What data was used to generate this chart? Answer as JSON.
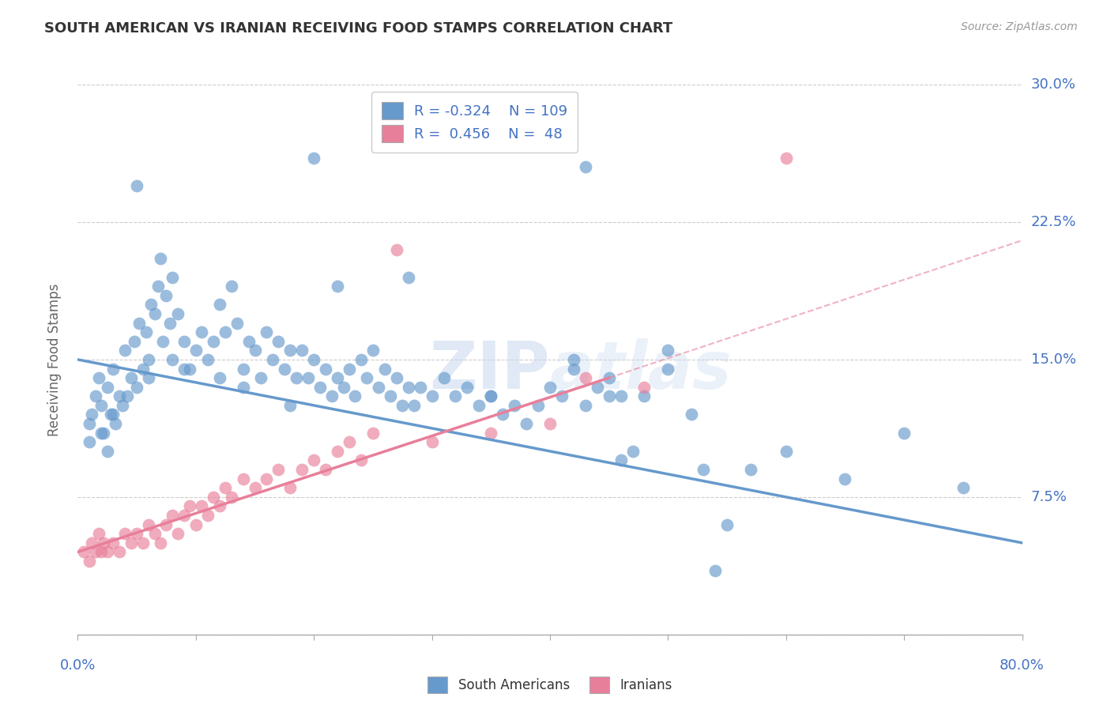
{
  "title": "SOUTH AMERICAN VS IRANIAN RECEIVING FOOD STAMPS CORRELATION CHART",
  "source": "Source: ZipAtlas.com",
  "ylabel": "Receiving Food Stamps",
  "xlim": [
    0.0,
    80.0
  ],
  "ylim": [
    0.0,
    30.0
  ],
  "yticks": [
    0.0,
    7.5,
    15.0,
    22.5,
    30.0
  ],
  "ytick_labels": [
    "",
    "7.5%",
    "15.0%",
    "22.5%",
    "30.0%"
  ],
  "xticks": [
    0,
    10,
    20,
    30,
    40,
    50,
    60,
    70,
    80
  ],
  "blue_color": "#6699cc",
  "pink_color": "#e87f9a",
  "trend_blue_x0": 0.0,
  "trend_blue_y0": 15.0,
  "trend_blue_x1": 80.0,
  "trend_blue_y1": 5.0,
  "trend_pink_solid_x0": 0.0,
  "trend_pink_solid_y0": 4.5,
  "trend_pink_solid_x1": 45.0,
  "trend_pink_solid_y1": 14.0,
  "trend_pink_dash_x0": 45.0,
  "trend_pink_dash_y0": 14.0,
  "trend_pink_dash_x1": 80.0,
  "trend_pink_dash_y1": 21.5,
  "watermark": "ZIPatlas",
  "blue_scatter": [
    [
      1.0,
      11.5
    ],
    [
      1.2,
      12.0
    ],
    [
      1.5,
      13.0
    ],
    [
      1.8,
      14.0
    ],
    [
      2.0,
      12.5
    ],
    [
      2.2,
      11.0
    ],
    [
      2.5,
      13.5
    ],
    [
      2.8,
      12.0
    ],
    [
      3.0,
      14.5
    ],
    [
      3.2,
      11.5
    ],
    [
      3.5,
      13.0
    ],
    [
      3.8,
      12.5
    ],
    [
      4.0,
      15.5
    ],
    [
      4.2,
      13.0
    ],
    [
      4.5,
      14.0
    ],
    [
      4.8,
      16.0
    ],
    [
      5.0,
      13.5
    ],
    [
      5.2,
      17.0
    ],
    [
      5.5,
      14.5
    ],
    [
      5.8,
      16.5
    ],
    [
      6.0,
      15.0
    ],
    [
      6.2,
      18.0
    ],
    [
      6.5,
      17.5
    ],
    [
      6.8,
      19.0
    ],
    [
      7.0,
      20.5
    ],
    [
      7.2,
      16.0
    ],
    [
      7.5,
      18.5
    ],
    [
      7.8,
      17.0
    ],
    [
      8.0,
      19.5
    ],
    [
      8.5,
      17.5
    ],
    [
      9.0,
      16.0
    ],
    [
      9.5,
      14.5
    ],
    [
      10.0,
      15.5
    ],
    [
      10.5,
      16.5
    ],
    [
      11.0,
      15.0
    ],
    [
      11.5,
      16.0
    ],
    [
      12.0,
      18.0
    ],
    [
      12.5,
      16.5
    ],
    [
      13.0,
      19.0
    ],
    [
      13.5,
      17.0
    ],
    [
      14.0,
      14.5
    ],
    [
      14.5,
      16.0
    ],
    [
      15.0,
      15.5
    ],
    [
      15.5,
      14.0
    ],
    [
      16.0,
      16.5
    ],
    [
      16.5,
      15.0
    ],
    [
      17.0,
      16.0
    ],
    [
      17.5,
      14.5
    ],
    [
      18.0,
      15.5
    ],
    [
      18.5,
      14.0
    ],
    [
      19.0,
      15.5
    ],
    [
      19.5,
      14.0
    ],
    [
      20.0,
      15.0
    ],
    [
      20.5,
      13.5
    ],
    [
      21.0,
      14.5
    ],
    [
      21.5,
      13.0
    ],
    [
      22.0,
      14.0
    ],
    [
      22.5,
      13.5
    ],
    [
      23.0,
      14.5
    ],
    [
      23.5,
      13.0
    ],
    [
      24.0,
      15.0
    ],
    [
      24.5,
      14.0
    ],
    [
      25.0,
      15.5
    ],
    [
      25.5,
      13.5
    ],
    [
      26.0,
      14.5
    ],
    [
      26.5,
      13.0
    ],
    [
      27.0,
      14.0
    ],
    [
      27.5,
      12.5
    ],
    [
      28.0,
      13.5
    ],
    [
      28.5,
      12.5
    ],
    [
      29.0,
      13.5
    ],
    [
      30.0,
      13.0
    ],
    [
      31.0,
      14.0
    ],
    [
      32.0,
      13.0
    ],
    [
      33.0,
      13.5
    ],
    [
      34.0,
      12.5
    ],
    [
      35.0,
      13.0
    ],
    [
      36.0,
      12.0
    ],
    [
      37.0,
      12.5
    ],
    [
      38.0,
      11.5
    ],
    [
      39.0,
      12.5
    ],
    [
      40.0,
      13.5
    ],
    [
      41.0,
      13.0
    ],
    [
      42.0,
      14.5
    ],
    [
      43.0,
      12.5
    ],
    [
      44.0,
      13.5
    ],
    [
      45.0,
      13.0
    ],
    [
      46.0,
      9.5
    ],
    [
      47.0,
      10.0
    ],
    [
      48.0,
      13.0
    ],
    [
      50.0,
      15.5
    ],
    [
      52.0,
      12.0
    ],
    [
      53.0,
      9.0
    ],
    [
      54.0,
      3.5
    ],
    [
      55.0,
      6.0
    ],
    [
      57.0,
      9.0
    ],
    [
      60.0,
      10.0
    ],
    [
      65.0,
      8.5
    ],
    [
      70.0,
      11.0
    ],
    [
      75.0,
      8.0
    ],
    [
      5.0,
      24.5
    ],
    [
      20.0,
      26.0
    ],
    [
      43.0,
      25.5
    ],
    [
      28.0,
      19.5
    ],
    [
      8.0,
      15.0
    ],
    [
      3.0,
      12.0
    ],
    [
      12.0,
      14.0
    ],
    [
      22.0,
      19.0
    ],
    [
      35.0,
      13.0
    ],
    [
      45.0,
      14.0
    ],
    [
      1.0,
      10.5
    ],
    [
      2.0,
      11.0
    ],
    [
      2.5,
      10.0
    ],
    [
      6.0,
      14.0
    ],
    [
      9.0,
      14.5
    ],
    [
      14.0,
      13.5
    ],
    [
      18.0,
      12.5
    ],
    [
      46.0,
      13.0
    ],
    [
      50.0,
      14.5
    ],
    [
      42.0,
      15.0
    ]
  ],
  "pink_scatter": [
    [
      0.5,
      4.5
    ],
    [
      1.0,
      4.0
    ],
    [
      1.2,
      5.0
    ],
    [
      1.5,
      4.5
    ],
    [
      1.8,
      5.5
    ],
    [
      2.0,
      4.5
    ],
    [
      2.2,
      5.0
    ],
    [
      2.5,
      4.5
    ],
    [
      3.0,
      5.0
    ],
    [
      3.5,
      4.5
    ],
    [
      4.0,
      5.5
    ],
    [
      4.5,
      5.0
    ],
    [
      5.0,
      5.5
    ],
    [
      5.5,
      5.0
    ],
    [
      6.0,
      6.0
    ],
    [
      6.5,
      5.5
    ],
    [
      7.0,
      5.0
    ],
    [
      7.5,
      6.0
    ],
    [
      8.0,
      6.5
    ],
    [
      8.5,
      5.5
    ],
    [
      9.0,
      6.5
    ],
    [
      9.5,
      7.0
    ],
    [
      10.0,
      6.0
    ],
    [
      10.5,
      7.0
    ],
    [
      11.0,
      6.5
    ],
    [
      11.5,
      7.5
    ],
    [
      12.0,
      7.0
    ],
    [
      12.5,
      8.0
    ],
    [
      13.0,
      7.5
    ],
    [
      14.0,
      8.5
    ],
    [
      15.0,
      8.0
    ],
    [
      16.0,
      8.5
    ],
    [
      17.0,
      9.0
    ],
    [
      18.0,
      8.0
    ],
    [
      19.0,
      9.0
    ],
    [
      20.0,
      9.5
    ],
    [
      21.0,
      9.0
    ],
    [
      22.0,
      10.0
    ],
    [
      23.0,
      10.5
    ],
    [
      24.0,
      9.5
    ],
    [
      25.0,
      11.0
    ],
    [
      27.0,
      21.0
    ],
    [
      30.0,
      10.5
    ],
    [
      35.0,
      11.0
    ],
    [
      40.0,
      11.5
    ],
    [
      43.0,
      14.0
    ],
    [
      48.0,
      13.5
    ],
    [
      60.0,
      26.0
    ]
  ]
}
